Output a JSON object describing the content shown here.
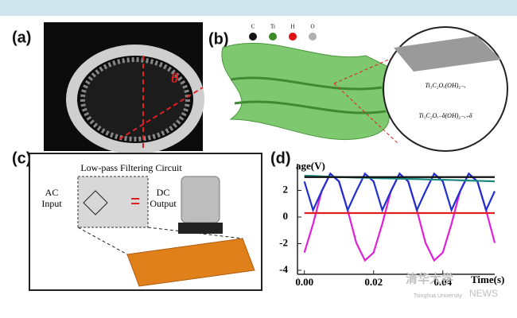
{
  "panels": {
    "a": {
      "label": "(a)",
      "angle": "θ"
    },
    "b": {
      "label": "(b)",
      "legend": [
        {
          "name": "C",
          "color": "#111111"
        },
        {
          "name": "Ti",
          "color": "#3a8a2a"
        },
        {
          "name": "H",
          "color": "#e01010"
        },
        {
          "name": "O",
          "color": "#b0b0b0"
        }
      ],
      "formula_top": "Ti₃C₂Oₓ(OH)₂₋ₓ",
      "formula_bottom": "Ti₃C₂Oₓ₋δ(OH)₂₋ₓ₊δ"
    },
    "c": {
      "label": "(c)",
      "title": "Low-pass Filtering Circuit",
      "input": [
        "AC",
        "Input"
      ],
      "output": [
        "DC",
        "Output"
      ]
    },
    "d": {
      "label": "(d)",
      "chart_data": {
        "type": "line",
        "ylabel": "age(V)",
        "xlabel": "Time(s)",
        "x": [
          0,
          0.0025,
          0.005,
          0.0075,
          0.01,
          0.0125,
          0.015,
          0.0175,
          0.02,
          0.0225,
          0.025,
          0.0275,
          0.03,
          0.0325,
          0.035,
          0.0375,
          0.04,
          0.0425,
          0.045,
          0.0475,
          0.05,
          0.0525,
          0.055
        ],
        "series": [
          {
            "color": "#e020d8",
            "values": [
              -2.67,
              -0.52,
              1.94,
              3.26,
              2.67,
              0.52,
              -1.94,
              -3.26,
              -2.67,
              -0.52,
              1.94,
              3.26,
              2.67,
              0.52,
              -1.94,
              -3.26,
              -2.67,
              -0.52,
              1.94,
              3.26,
              2.67,
              0.52,
              -1.94
            ]
          },
          {
            "color": "#2030d0",
            "values": [
              2.67,
              0.52,
              1.94,
              3.26,
              2.67,
              0.52,
              1.94,
              3.26,
              2.67,
              0.52,
              1.94,
              3.26,
              2.67,
              0.52,
              1.94,
              3.26,
              2.67,
              0.52,
              1.94,
              3.26,
              2.67,
              0.52,
              1.94
            ]
          },
          {
            "color": "#1a8a80",
            "values": [
              3.1,
              3.08,
              3.05,
              3.03,
              3.0,
              2.98,
              2.96,
              2.95,
              2.93,
              2.91,
              2.9,
              2.88,
              2.86,
              2.85,
              2.83,
              2.81,
              2.8,
              2.78,
              2.76,
              2.74,
              2.72,
              2.7,
              2.68
            ]
          },
          {
            "color": "#111111",
            "values": [
              3.0,
              3.0,
              3.0,
              3.0,
              3.0,
              3.0,
              3.0,
              3.0,
              3.0,
              3.0,
              3.0,
              3.0,
              3.0,
              3.0,
              3.0,
              3.0,
              3.0,
              3.0,
              3.0,
              3.0,
              3.0,
              3.0,
              3.0
            ]
          },
          {
            "color": "#e02020",
            "values": [
              0.3,
              0.3,
              0.3,
              0.3,
              0.3,
              0.3,
              0.3,
              0.3,
              0.3,
              0.3,
              0.3,
              0.3,
              0.3,
              0.3,
              0.3,
              0.3,
              0.3,
              0.3,
              0.3,
              0.3,
              0.3,
              0.3,
              0.3
            ]
          }
        ],
        "xlim": [
          -0.002,
          0.055
        ],
        "ylim": [
          -4.3,
          4
        ],
        "xticks": [
          {
            "value": 0,
            "label": "0.00"
          },
          {
            "value": 0.02,
            "label": "0.02"
          },
          {
            "value": 0.04,
            "label": "0.04"
          }
        ],
        "yticks": [
          -4,
          -2,
          0,
          2
        ]
      }
    }
  },
  "watermark": {
    "logo": "清华大学",
    "sub": "Tsinghua University",
    "news": "NEWS"
  }
}
